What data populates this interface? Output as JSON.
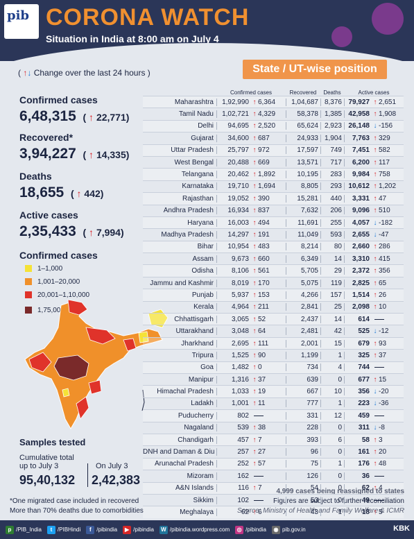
{
  "header": {
    "logo_text": "pib",
    "title": "CORONA WATCH",
    "subtitle": "Situation in India at 8:00 am on July 4"
  },
  "change_note": "Change over the last 24 hours",
  "state_banner": "State / UT-wise position",
  "stats": {
    "confirmed": {
      "label": "Confirmed cases",
      "value": "6,48,315",
      "delta": "22,771"
    },
    "recovered": {
      "label": "Recovered*",
      "value": "3,94,227",
      "delta": "14,335"
    },
    "deaths": {
      "label": "Deaths",
      "value": "18,655",
      "delta": "442"
    },
    "active": {
      "label": "Active cases",
      "value": "2,35,433",
      "delta": "7,994"
    }
  },
  "legend": {
    "title": "Confirmed cases",
    "items": [
      {
        "label": "1–1,000",
        "color": "#f5e236"
      },
      {
        "label": "1,001–20,000",
        "color": "#f0902a"
      },
      {
        "label": "20,001–1,10,000",
        "color": "#e0332a"
      },
      {
        "label": "1,75,000+",
        "color": "#7a2a2a"
      }
    ]
  },
  "samples": {
    "title": "Samples tested",
    "cumulative_label_1": "Cumulative total",
    "cumulative_label_2": "up to July 3",
    "cumulative_value": "95,40,132",
    "day_label": "On July 3",
    "day_value": "2,42,383"
  },
  "footnotes": {
    "line1": "*One migrated case included in recovered",
    "line2": "More than 70% deaths due to comorbidities"
  },
  "right_notes": {
    "reassigned": "4,999 cases being reassigned to states",
    "reconcile": "Figures are subject to further reconciliation",
    "source": "Source: Ministry of Health and Family Welfare & ICMR"
  },
  "table": {
    "headers": {
      "confirmed": "Confirmed cases",
      "recovered": "Recovered",
      "deaths": "Deaths",
      "active": "Active cases"
    },
    "rows": [
      {
        "state": "Maharashtra",
        "conf": "1,92,990",
        "cd": "6,364",
        "rec": "1,04,687",
        "dth": "8,376",
        "act": "79,927",
        "ad": "2,651",
        "dir": "up"
      },
      {
        "state": "Tamil Nadu",
        "conf": "1,02,721",
        "cd": "4,329",
        "rec": "58,378",
        "dth": "1,385",
        "act": "42,958",
        "ad": "1,908",
        "dir": "up"
      },
      {
        "state": "Delhi",
        "conf": "94,695",
        "cd": "2,520",
        "rec": "65,624",
        "dth": "2,923",
        "act": "26,148",
        "ad": "-156",
        "dir": "down"
      },
      {
        "state": "Gujarat",
        "conf": "34,600",
        "cd": "687",
        "rec": "24,933",
        "dth": "1,904",
        "act": "7,763",
        "ad": "329",
        "dir": "up"
      },
      {
        "state": "Uttar Pradesh",
        "conf": "25,797",
        "cd": "972",
        "rec": "17,597",
        "dth": "749",
        "act": "7,451",
        "ad": "582",
        "dir": "up"
      },
      {
        "state": "West Bengal",
        "conf": "20,488",
        "cd": "669",
        "rec": "13,571",
        "dth": "717",
        "act": "6,200",
        "ad": "117",
        "dir": "up"
      },
      {
        "state": "Telangana",
        "conf": "20,462",
        "cd": "1,892",
        "rec": "10,195",
        "dth": "283",
        "act": "9,984",
        "ad": "758",
        "dir": "up"
      },
      {
        "state": "Karnataka",
        "conf": "19,710",
        "cd": "1,694",
        "rec": "8,805",
        "dth": "293",
        "act": "10,612",
        "ad": "1,202",
        "dir": "up"
      },
      {
        "state": "Rajasthan",
        "conf": "19,052",
        "cd": "390",
        "rec": "15,281",
        "dth": "440",
        "act": "3,331",
        "ad": "47",
        "dir": "up"
      },
      {
        "state": "Andhra Pradesh",
        "conf": "16,934",
        "cd": "837",
        "rec": "7,632",
        "dth": "206",
        "act": "9,096",
        "ad": "510",
        "dir": "up"
      },
      {
        "state": "Haryana",
        "conf": "16,003",
        "cd": "494",
        "rec": "11,691",
        "dth": "255",
        "act": "4,057",
        "ad": "-182",
        "dir": "down"
      },
      {
        "state": "Madhya Pradesh",
        "conf": "14,297",
        "cd": "191",
        "rec": "11,049",
        "dth": "593",
        "act": "2,655",
        "ad": "-47",
        "dir": "down"
      },
      {
        "state": "Bihar",
        "conf": "10,954",
        "cd": "483",
        "rec": "8,214",
        "dth": "80",
        "act": "2,660",
        "ad": "286",
        "dir": "up"
      },
      {
        "state": "Assam",
        "conf": "9,673",
        "cd": "660",
        "rec": "6,349",
        "dth": "14",
        "act": "3,310",
        "ad": "415",
        "dir": "up"
      },
      {
        "state": "Odisha",
        "conf": "8,106",
        "cd": "561",
        "rec": "5,705",
        "dth": "29",
        "act": "2,372",
        "ad": "356",
        "dir": "up"
      },
      {
        "state": "Jammu and Kashmir",
        "conf": "8,019",
        "cd": "170",
        "rec": "5,075",
        "dth": "119",
        "act": "2,825",
        "ad": "65",
        "dir": "up"
      },
      {
        "state": "Punjab",
        "conf": "5,937",
        "cd": "153",
        "rec": "4,266",
        "dth": "157",
        "act": "1,514",
        "ad": "26",
        "dir": "up"
      },
      {
        "state": "Kerala",
        "conf": "4,964",
        "cd": "211",
        "rec": "2,841",
        "dth": "25",
        "act": "2,098",
        "ad": "10",
        "dir": "up"
      },
      {
        "state": "Chhattisgarh",
        "conf": "3,065",
        "cd": "52",
        "rec": "2,437",
        "dth": "14",
        "act": "614",
        "ad": "",
        "dir": "none"
      },
      {
        "state": "Uttarakhand",
        "conf": "3,048",
        "cd": "64",
        "rec": "2,481",
        "dth": "42",
        "act": "525",
        "ad": "-12",
        "dir": "down"
      },
      {
        "state": "Jharkhand",
        "conf": "2,695",
        "cd": "111",
        "rec": "2,001",
        "dth": "15",
        "act": "679",
        "ad": "93",
        "dir": "up"
      },
      {
        "state": "Tripura",
        "conf": "1,525",
        "cd": "90",
        "rec": "1,199",
        "dth": "1",
        "act": "325",
        "ad": "37",
        "dir": "up"
      },
      {
        "state": "Goa",
        "conf": "1,482",
        "cd": "0",
        "rec": "734",
        "dth": "4",
        "act": "744",
        "ad": "",
        "dir": "none"
      },
      {
        "state": "Manipur",
        "conf": "1,316",
        "cd": "37",
        "rec": "639",
        "dth": "0",
        "act": "677",
        "ad": "15",
        "dir": "up"
      },
      {
        "state": "Himachal Pradesh",
        "conf": "1,033",
        "cd": "19",
        "rec": "667",
        "dth": "10",
        "act": "356",
        "ad": "-20",
        "dir": "down"
      },
      {
        "state": "Ladakh",
        "conf": "1,001",
        "cd": "11",
        "rec": "777",
        "dth": "1",
        "act": "223",
        "ad": "-36",
        "dir": "down"
      },
      {
        "state": "Puducherry",
        "conf": "802",
        "cd": "",
        "rec": "331",
        "dth": "12",
        "act": "459",
        "ad": "",
        "dir": "none"
      },
      {
        "state": "Nagaland",
        "conf": "539",
        "cd": "38",
        "rec": "228",
        "dth": "0",
        "act": "311",
        "ad": "-8",
        "dir": "down"
      },
      {
        "state": "Chandigarh",
        "conf": "457",
        "cd": "7",
        "rec": "393",
        "dth": "6",
        "act": "58",
        "ad": "3",
        "dir": "up"
      },
      {
        "state": "DNH and Daman & Diu",
        "conf": "257",
        "cd": "27",
        "rec": "96",
        "dth": "0",
        "act": "161",
        "ad": "20",
        "dir": "up"
      },
      {
        "state": "Arunachal Pradesh",
        "conf": "252",
        "cd": "57",
        "rec": "75",
        "dth": "1",
        "act": "176",
        "ad": "48",
        "dir": "up"
      },
      {
        "state": "Mizoram",
        "conf": "162",
        "cd": "",
        "rec": "126",
        "dth": "0",
        "act": "36",
        "ad": "",
        "dir": "none"
      },
      {
        "state": "A&N Islands",
        "conf": "116",
        "cd": "7",
        "rec": "54",
        "dth": "0",
        "act": "62",
        "ad": "4",
        "dir": "up"
      },
      {
        "state": "Sikkim",
        "conf": "102",
        "cd": "",
        "rec": "53",
        "dth": "0",
        "act": "49",
        "ad": "",
        "dir": "none"
      },
      {
        "state": "Meghalaya",
        "conf": "62",
        "cd": "6",
        "rec": "43",
        "dth": "1",
        "act": "18",
        "ad": "5",
        "dir": "up"
      }
    ]
  },
  "footer": {
    "items": [
      {
        "icon": "pib-icon",
        "text": "/PIB_India"
      },
      {
        "icon": "twitter-icon",
        "text": "/PIBHindi"
      },
      {
        "icon": "facebook-icon",
        "text": "/pibindia"
      },
      {
        "icon": "youtube-icon",
        "text": "/pibindia"
      },
      {
        "icon": "wordpress-icon",
        "text": "/pibindia.wordpress.com"
      },
      {
        "icon": "instagram-icon",
        "text": "/pibindia"
      },
      {
        "icon": "web-icon",
        "text": "pib.gov.in"
      }
    ],
    "brand": "KBK"
  },
  "colors": {
    "accent": "#f09030",
    "navy": "#2b3658",
    "up": "#d8242b",
    "down": "#1f7ad6"
  }
}
